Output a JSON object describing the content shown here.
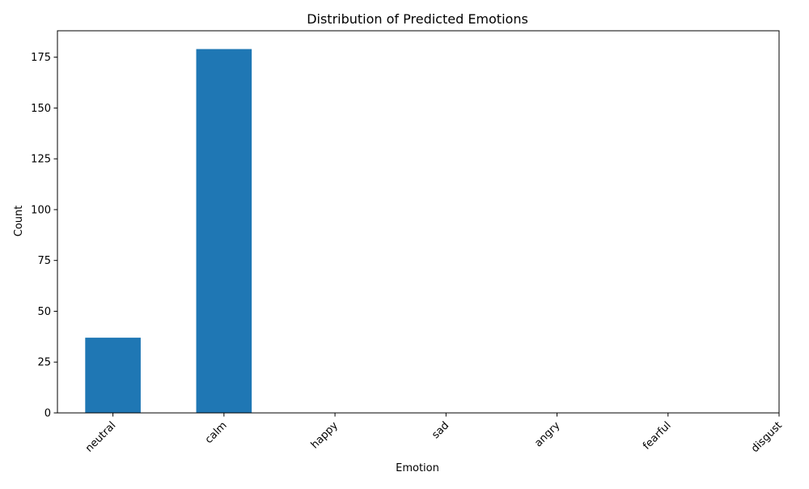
{
  "chart_data": {
    "type": "bar",
    "title": "Distribution of Predicted Emotions",
    "xlabel": "Emotion",
    "ylabel": "Count",
    "categories": [
      "neutral",
      "calm",
      "happy",
      "sad",
      "angry",
      "fearful",
      "disgust"
    ],
    "values": [
      37,
      179,
      0,
      0,
      0,
      0,
      0
    ],
    "ylim": [
      0,
      188
    ],
    "yticks": [
      0,
      25,
      50,
      75,
      100,
      125,
      150,
      175
    ],
    "xlim": [
      -0.5,
      6.0
    ],
    "grid": false,
    "legend": "none",
    "bar_color": "#1f77b4"
  }
}
